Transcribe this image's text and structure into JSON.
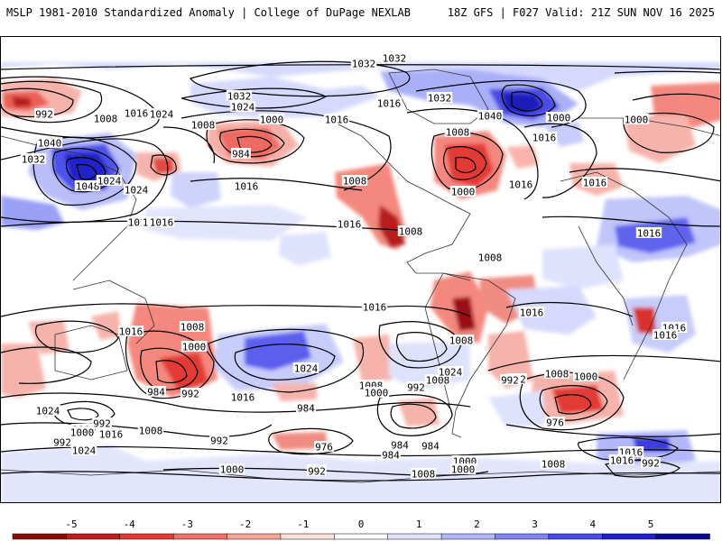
{
  "header": {
    "left": "MSLP 1981-2010 Standardized Anomaly | College of DuPage NEXLAB",
    "right": "18Z GFS | F027 Valid: 21Z SUN NOV 16 2025"
  },
  "map": {
    "field": "MSLP standardized anomaly",
    "contour_unit": "hPa",
    "isobar_labels": [
      "1032",
      "1032",
      "1032",
      "1024",
      "1016",
      "1000",
      "1008",
      "992",
      "1024",
      "1016",
      "1016",
      "1008",
      "1000",
      "1016",
      "1016",
      "1032",
      "1040",
      "1032",
      "1024",
      "1048",
      "1040",
      "984",
      "1016",
      "1016",
      "1008",
      "1008",
      "1000",
      "1008",
      "1016",
      "1024",
      "1000",
      "1016",
      "1016",
      "1016",
      "1016",
      "1008",
      "1016",
      "1008",
      "1008",
      "1000",
      "1016",
      "1024",
      "1016",
      "1016",
      "1016",
      "1008",
      "1000",
      "992",
      "984",
      "1016",
      "1024",
      "1008",
      "1000",
      "992",
      "1008",
      "1024",
      "984",
      "992",
      "1000",
      "976",
      "992",
      "1000",
      "992",
      "984",
      "992",
      "1016",
      "1008",
      "976",
      "984",
      "1008",
      "992",
      "984",
      "1016",
      "992",
      "1000",
      "992",
      "1000",
      "992",
      "1008",
      "1000",
      "1016",
      "1024"
    ],
    "anomaly_colors": {
      "strong_positive": "#1a1ad9",
      "positive": "#6b6bf0",
      "weak_positive": "#cfd3fb",
      "neutral": "#ffffff",
      "weak_negative": "#f9c9c0",
      "negative": "#ef6b62",
      "strong_negative": "#9a0f12"
    }
  },
  "colorbar": {
    "ticks": [
      "-5",
      "-4",
      "-3",
      "-2",
      "-1",
      "0",
      "1",
      "2",
      "3",
      "4",
      "5"
    ],
    "min": -5,
    "max": 5,
    "colors": [
      "#8c0c0c",
      "#bf1c1c",
      "#e23a36",
      "#f4716a",
      "#f9a79e",
      "#fde0da",
      "#ffffff",
      "#dfe3fe",
      "#b3b8fb",
      "#7e84f5",
      "#4a4aea",
      "#2020d0",
      "#0a0a99"
    ]
  }
}
